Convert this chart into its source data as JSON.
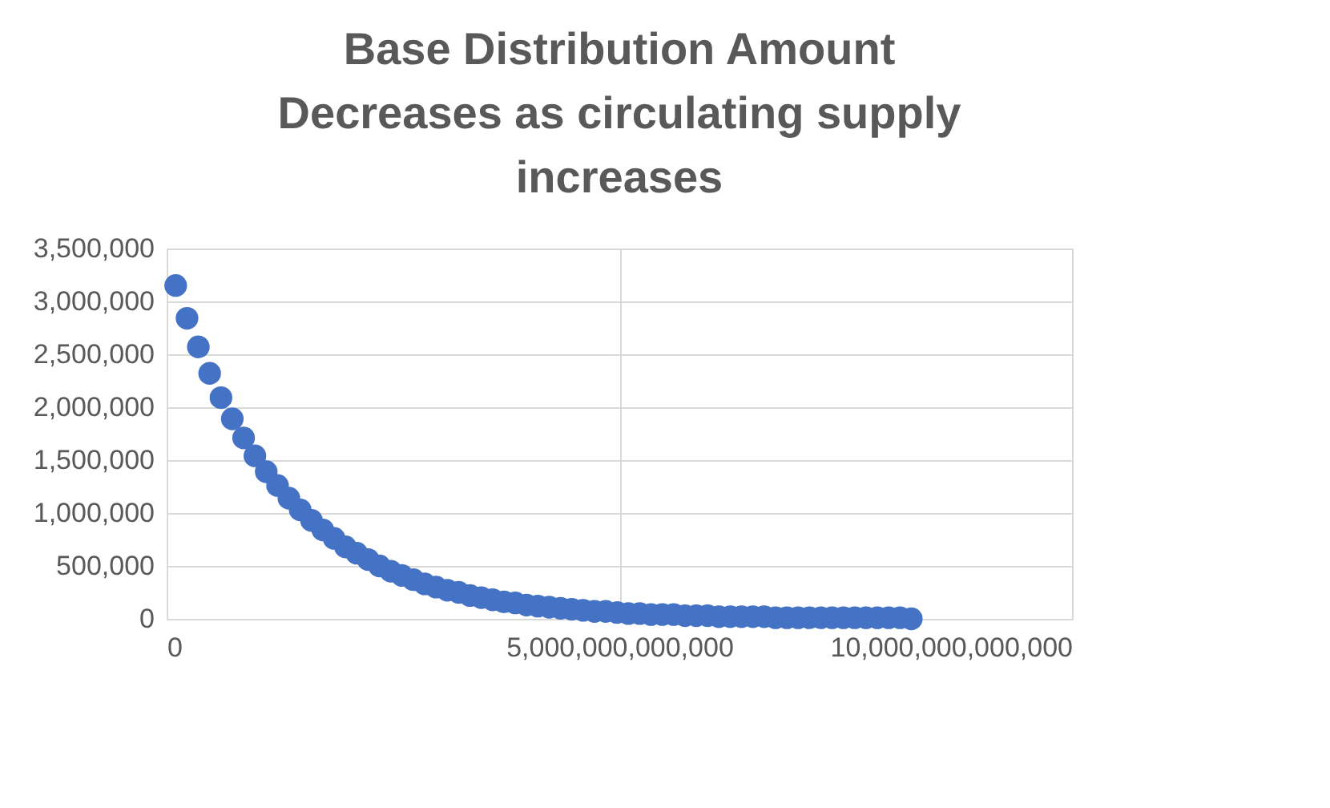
{
  "chart_data": {
    "type": "scatter",
    "title": [
      "Base Distribution Amount",
      "Decreases as circulating supply",
      "increases"
    ],
    "x": [
      100000000000.0,
      225000000000.0,
      350000000000.0,
      475000000000.0,
      600000000000.0,
      725000000000.0,
      850000000000.0,
      975000000000.0,
      1100000000000.0,
      1225000000000.0,
      1350000000000.0,
      1475000000000.0,
      1600000000000.0,
      1725000000000.0,
      1850000000000.0,
      1975000000000.0,
      2100000000000.0,
      2225000000000.0,
      2350000000000.0,
      2475000000000.0,
      2600000000000.0,
      2725000000000.0,
      2850000000000.0,
      2975000000000.0,
      3100000000000.0,
      3225000000000.0,
      3350000000000.0,
      3475000000000.0,
      3600000000000.0,
      3725000000000.0,
      3850000000000.0,
      3975000000000.0,
      4100000000000.0,
      4225000000000.0,
      4350000000000.0,
      4475000000000.0,
      4600000000000.0,
      4725000000000.0,
      4850000000000.0,
      4975000000000.0,
      5100000000000.0,
      5225000000000.0,
      5350000000000.0,
      5475000000000.0,
      5600000000000.0,
      5725000000000.0,
      5850000000000.0,
      5975000000000.0,
      6100000000000.0,
      6225000000000.0,
      6350000000000.0,
      6475000000000.0,
      6600000000000.0,
      6725000000000.0,
      6850000000000.0,
      6975000000000.0,
      7100000000000.0,
      7225000000000.0,
      7350000000000.0,
      7475000000000.0,
      7600000000000.0,
      7725000000000.0,
      7850000000000.0,
      7975000000000.0,
      8100000000000.0,
      8225000000000.0
    ],
    "series": [
      {
        "color": "#4472c4",
        "values": [
          3150000,
          2840000,
          2570000,
          2320000,
          2090000,
          1890000,
          1710000,
          1540000,
          1390000,
          1260000,
          1140000,
          1030000,
          930000,
          840000,
          760000,
          680000,
          620000,
          560000,
          500000,
          450000,
          410000,
          370000,
          330000,
          300000,
          270000,
          250000,
          220000,
          200000,
          180000,
          160000,
          150000,
          130000,
          120000,
          110000,
          100000,
          90000,
          80000,
          70000,
          70000,
          60000,
          50000,
          50000,
          40000,
          40000,
          40000,
          30000,
          30000,
          30000,
          20000,
          20000,
          20000,
          20000,
          20000,
          10000,
          10000,
          10000,
          10000,
          10000,
          10000,
          10000,
          10000,
          10000,
          10000,
          10000,
          10000,
          0
        ]
      }
    ],
    "xlim": [
      0,
      10000000000000.0
    ],
    "xticks": [
      0,
      {
        "value": 5000000000000.0,
        "label": "5,000,000,000,000"
      },
      {
        "value": 10000000000000.0,
        "label": "10,000,000,000,000"
      }
    ],
    "ylim": [
      0,
      3500000
    ],
    "yticks": [
      0,
      {
        "value": 500000,
        "label": "500,000"
      },
      {
        "value": 1000000,
        "label": "1,000,000"
      },
      {
        "value": 1500000,
        "label": "1,500,000"
      },
      {
        "value": 2000000,
        "label": "2,000,000"
      },
      {
        "value": 2500000,
        "label": "2,500,000"
      },
      {
        "value": 3000000,
        "label": "3,000,000"
      },
      {
        "value": 3500000,
        "label": "3,500,000"
      }
    ],
    "grid": true,
    "marker": "circle",
    "legend": false
  }
}
